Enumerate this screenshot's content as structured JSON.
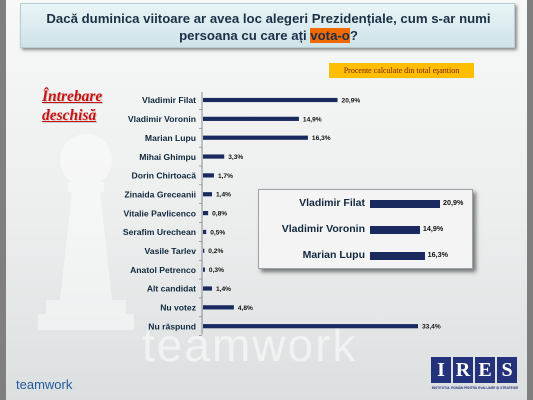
{
  "title": {
    "part1": "Dacă duminica viitoare ar avea loc alegeri Prezidențiale, cum s-ar numi",
    "part2": "persoana cu care ați ",
    "highlight": "vota-o",
    "part3": "?"
  },
  "percent_note": "Procente calculate din total eşantion",
  "question_type": [
    "Întrebare",
    "deschisă"
  ],
  "chart_data": {
    "type": "bar",
    "orientation": "horizontal",
    "categories": [
      "Vladimir Filat",
      "Vladimir Voronin",
      "Marian Lupu",
      "Mihai Ghimpu",
      "Dorin Chirtoacă",
      "Zinaida Greceanii",
      "Vitalie Pavlicenco",
      "Serafim Urechean",
      "Vasile Tarlev",
      "Anatol Petrenco",
      "Alt candidat",
      "Nu votez",
      "Nu răspund"
    ],
    "values": [
      20.9,
      14.9,
      16.3,
      3.3,
      1.7,
      1.4,
      0.8,
      0.5,
      0.2,
      0.3,
      1.4,
      4.8,
      33.4
    ],
    "value_labels": [
      "20,9%",
      "14,9%",
      "16,3%",
      "3,3%",
      "1,7%",
      "1,4%",
      "0,8%",
      "0,5%",
      "0,2%",
      "0,3%",
      "1,4%",
      "4,8%",
      "33,4%"
    ],
    "bar_color": "#1b2a5e",
    "xlim": [
      0,
      35
    ]
  },
  "inset": {
    "categories": [
      "Vladimir Filat",
      "Vladimir Voronin",
      "Marian Lupu"
    ],
    "values": [
      20.9,
      14.9,
      16.3
    ],
    "value_labels": [
      "20,9%",
      "14,9%",
      "16,3%"
    ]
  },
  "watermark": "teamwork",
  "logo_text": "teamwork",
  "org_logo": {
    "letters": [
      "I",
      "R",
      "E",
      "S"
    ],
    "subtitle": "INSTITUTUL ROMÂN PENTRU EVALUARE ŞI STRATEGIE"
  },
  "colors": {
    "title_text": "#1c3047",
    "highlight": "#f06a00",
    "note_bg": "#ffbf00",
    "question_red": "#cc1010",
    "brand_blue": "#24327b"
  }
}
